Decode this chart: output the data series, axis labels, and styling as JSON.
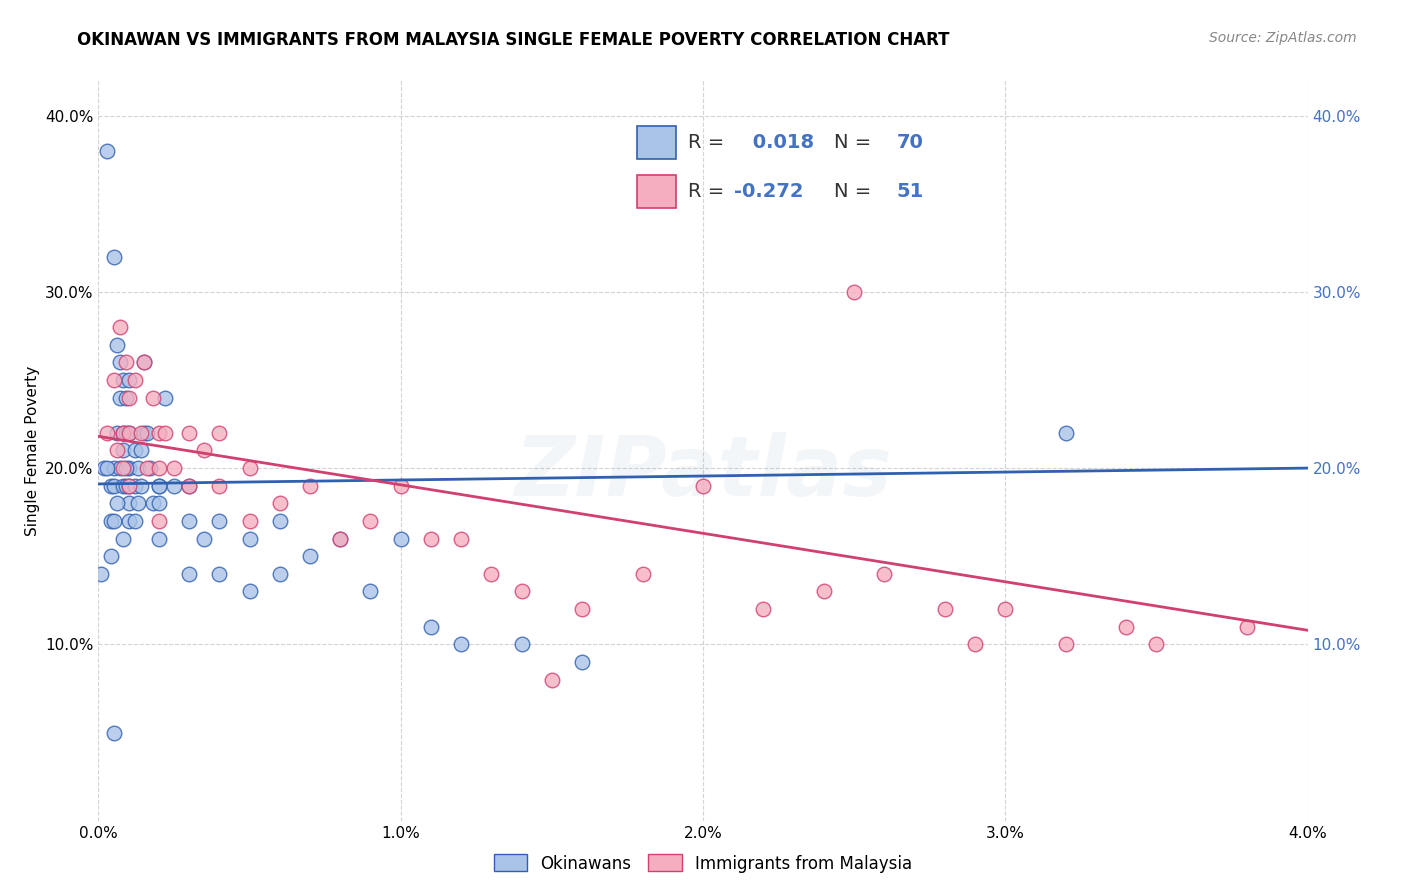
{
  "title": "OKINAWAN VS IMMIGRANTS FROM MALAYSIA SINGLE FEMALE POVERTY CORRELATION CHART",
  "source": "Source: ZipAtlas.com",
  "ylabel": "Single Female Poverty",
  "watermark": "ZIPatlas",
  "legend_1_label": "Okinawans",
  "legend_2_label": "Immigrants from Malaysia",
  "R1": 0.018,
  "N1": 70,
  "R2": -0.272,
  "N2": 51,
  "color_blue": "#aac4e8",
  "color_pink": "#f5aec0",
  "line_blue": "#3060b0",
  "line_pink": "#d04070",
  "text_blue": "#4472c4",
  "xlim": [
    0.0,
    0.04
  ],
  "ylim": [
    0.0,
    0.42
  ],
  "xtick_labels": [
    "0.0%",
    "1.0%",
    "2.0%",
    "3.0%",
    "4.0%"
  ],
  "xtick_vals": [
    0.0,
    0.01,
    0.02,
    0.03,
    0.04
  ],
  "ytick_vals": [
    0.0,
    0.1,
    0.2,
    0.3,
    0.4
  ],
  "ytick_labels": [
    "",
    "10.0%",
    "20.0%",
    "30.0%",
    "40.0%"
  ],
  "blue_line_y0": 0.191,
  "blue_line_y1": 0.2,
  "pink_line_y0": 0.218,
  "pink_line_y1": 0.108,
  "blue_x": [
    0.0002,
    0.0003,
    0.0004,
    0.0004,
    0.0005,
    0.0005,
    0.0005,
    0.0006,
    0.0006,
    0.0007,
    0.0007,
    0.0007,
    0.0008,
    0.0008,
    0.0008,
    0.0008,
    0.0009,
    0.0009,
    0.0009,
    0.001,
    0.001,
    0.001,
    0.001,
    0.001,
    0.001,
    0.0012,
    0.0012,
    0.0012,
    0.0013,
    0.0013,
    0.0014,
    0.0014,
    0.0015,
    0.0015,
    0.0016,
    0.0017,
    0.0018,
    0.002,
    0.002,
    0.002,
    0.0022,
    0.0025,
    0.003,
    0.003,
    0.003,
    0.0035,
    0.004,
    0.004,
    0.005,
    0.005,
    0.006,
    0.006,
    0.007,
    0.008,
    0.009,
    0.01,
    0.011,
    0.012,
    0.014,
    0.016,
    0.002,
    0.0005,
    0.0003,
    0.0001,
    0.0004,
    0.0008,
    0.0006,
    0.0009,
    0.032,
    0.0005
  ],
  "blue_y": [
    0.2,
    0.38,
    0.19,
    0.17,
    0.2,
    0.19,
    0.17,
    0.27,
    0.22,
    0.26,
    0.24,
    0.2,
    0.25,
    0.22,
    0.21,
    0.19,
    0.24,
    0.22,
    0.19,
    0.25,
    0.22,
    0.2,
    0.19,
    0.18,
    0.17,
    0.21,
    0.19,
    0.17,
    0.2,
    0.18,
    0.21,
    0.19,
    0.26,
    0.22,
    0.22,
    0.2,
    0.18,
    0.19,
    0.18,
    0.16,
    0.24,
    0.19,
    0.19,
    0.17,
    0.14,
    0.16,
    0.17,
    0.14,
    0.16,
    0.13,
    0.17,
    0.14,
    0.15,
    0.16,
    0.13,
    0.16,
    0.11,
    0.1,
    0.1,
    0.09,
    0.19,
    0.32,
    0.2,
    0.14,
    0.15,
    0.16,
    0.18,
    0.2,
    0.22,
    0.05
  ],
  "pink_x": [
    0.0003,
    0.0005,
    0.0006,
    0.0007,
    0.0008,
    0.0008,
    0.0009,
    0.001,
    0.001,
    0.001,
    0.0012,
    0.0014,
    0.0015,
    0.0016,
    0.0018,
    0.002,
    0.002,
    0.002,
    0.0022,
    0.0025,
    0.003,
    0.003,
    0.0035,
    0.004,
    0.004,
    0.005,
    0.005,
    0.006,
    0.007,
    0.008,
    0.009,
    0.01,
    0.011,
    0.012,
    0.013,
    0.014,
    0.015,
    0.016,
    0.018,
    0.02,
    0.022,
    0.024,
    0.025,
    0.026,
    0.028,
    0.029,
    0.03,
    0.032,
    0.034,
    0.035,
    0.038
  ],
  "pink_y": [
    0.22,
    0.25,
    0.21,
    0.28,
    0.22,
    0.2,
    0.26,
    0.24,
    0.22,
    0.19,
    0.25,
    0.22,
    0.26,
    0.2,
    0.24,
    0.22,
    0.2,
    0.17,
    0.22,
    0.2,
    0.22,
    0.19,
    0.21,
    0.22,
    0.19,
    0.2,
    0.17,
    0.18,
    0.19,
    0.16,
    0.17,
    0.19,
    0.16,
    0.16,
    0.14,
    0.13,
    0.08,
    0.12,
    0.14,
    0.19,
    0.12,
    0.13,
    0.3,
    0.14,
    0.12,
    0.1,
    0.12,
    0.1,
    0.11,
    0.1,
    0.11
  ],
  "title_fontsize": 12,
  "source_fontsize": 10,
  "axis_fontsize": 11,
  "tick_fontsize": 11,
  "legend_fontsize": 14,
  "watermark_fontsize": 60,
  "watermark_alpha": 0.1,
  "watermark_color": "#8aaabb",
  "background_color": "#ffffff",
  "grid_color": "#c8c8c8",
  "grid_linestyle": "--",
  "grid_alpha": 0.8
}
